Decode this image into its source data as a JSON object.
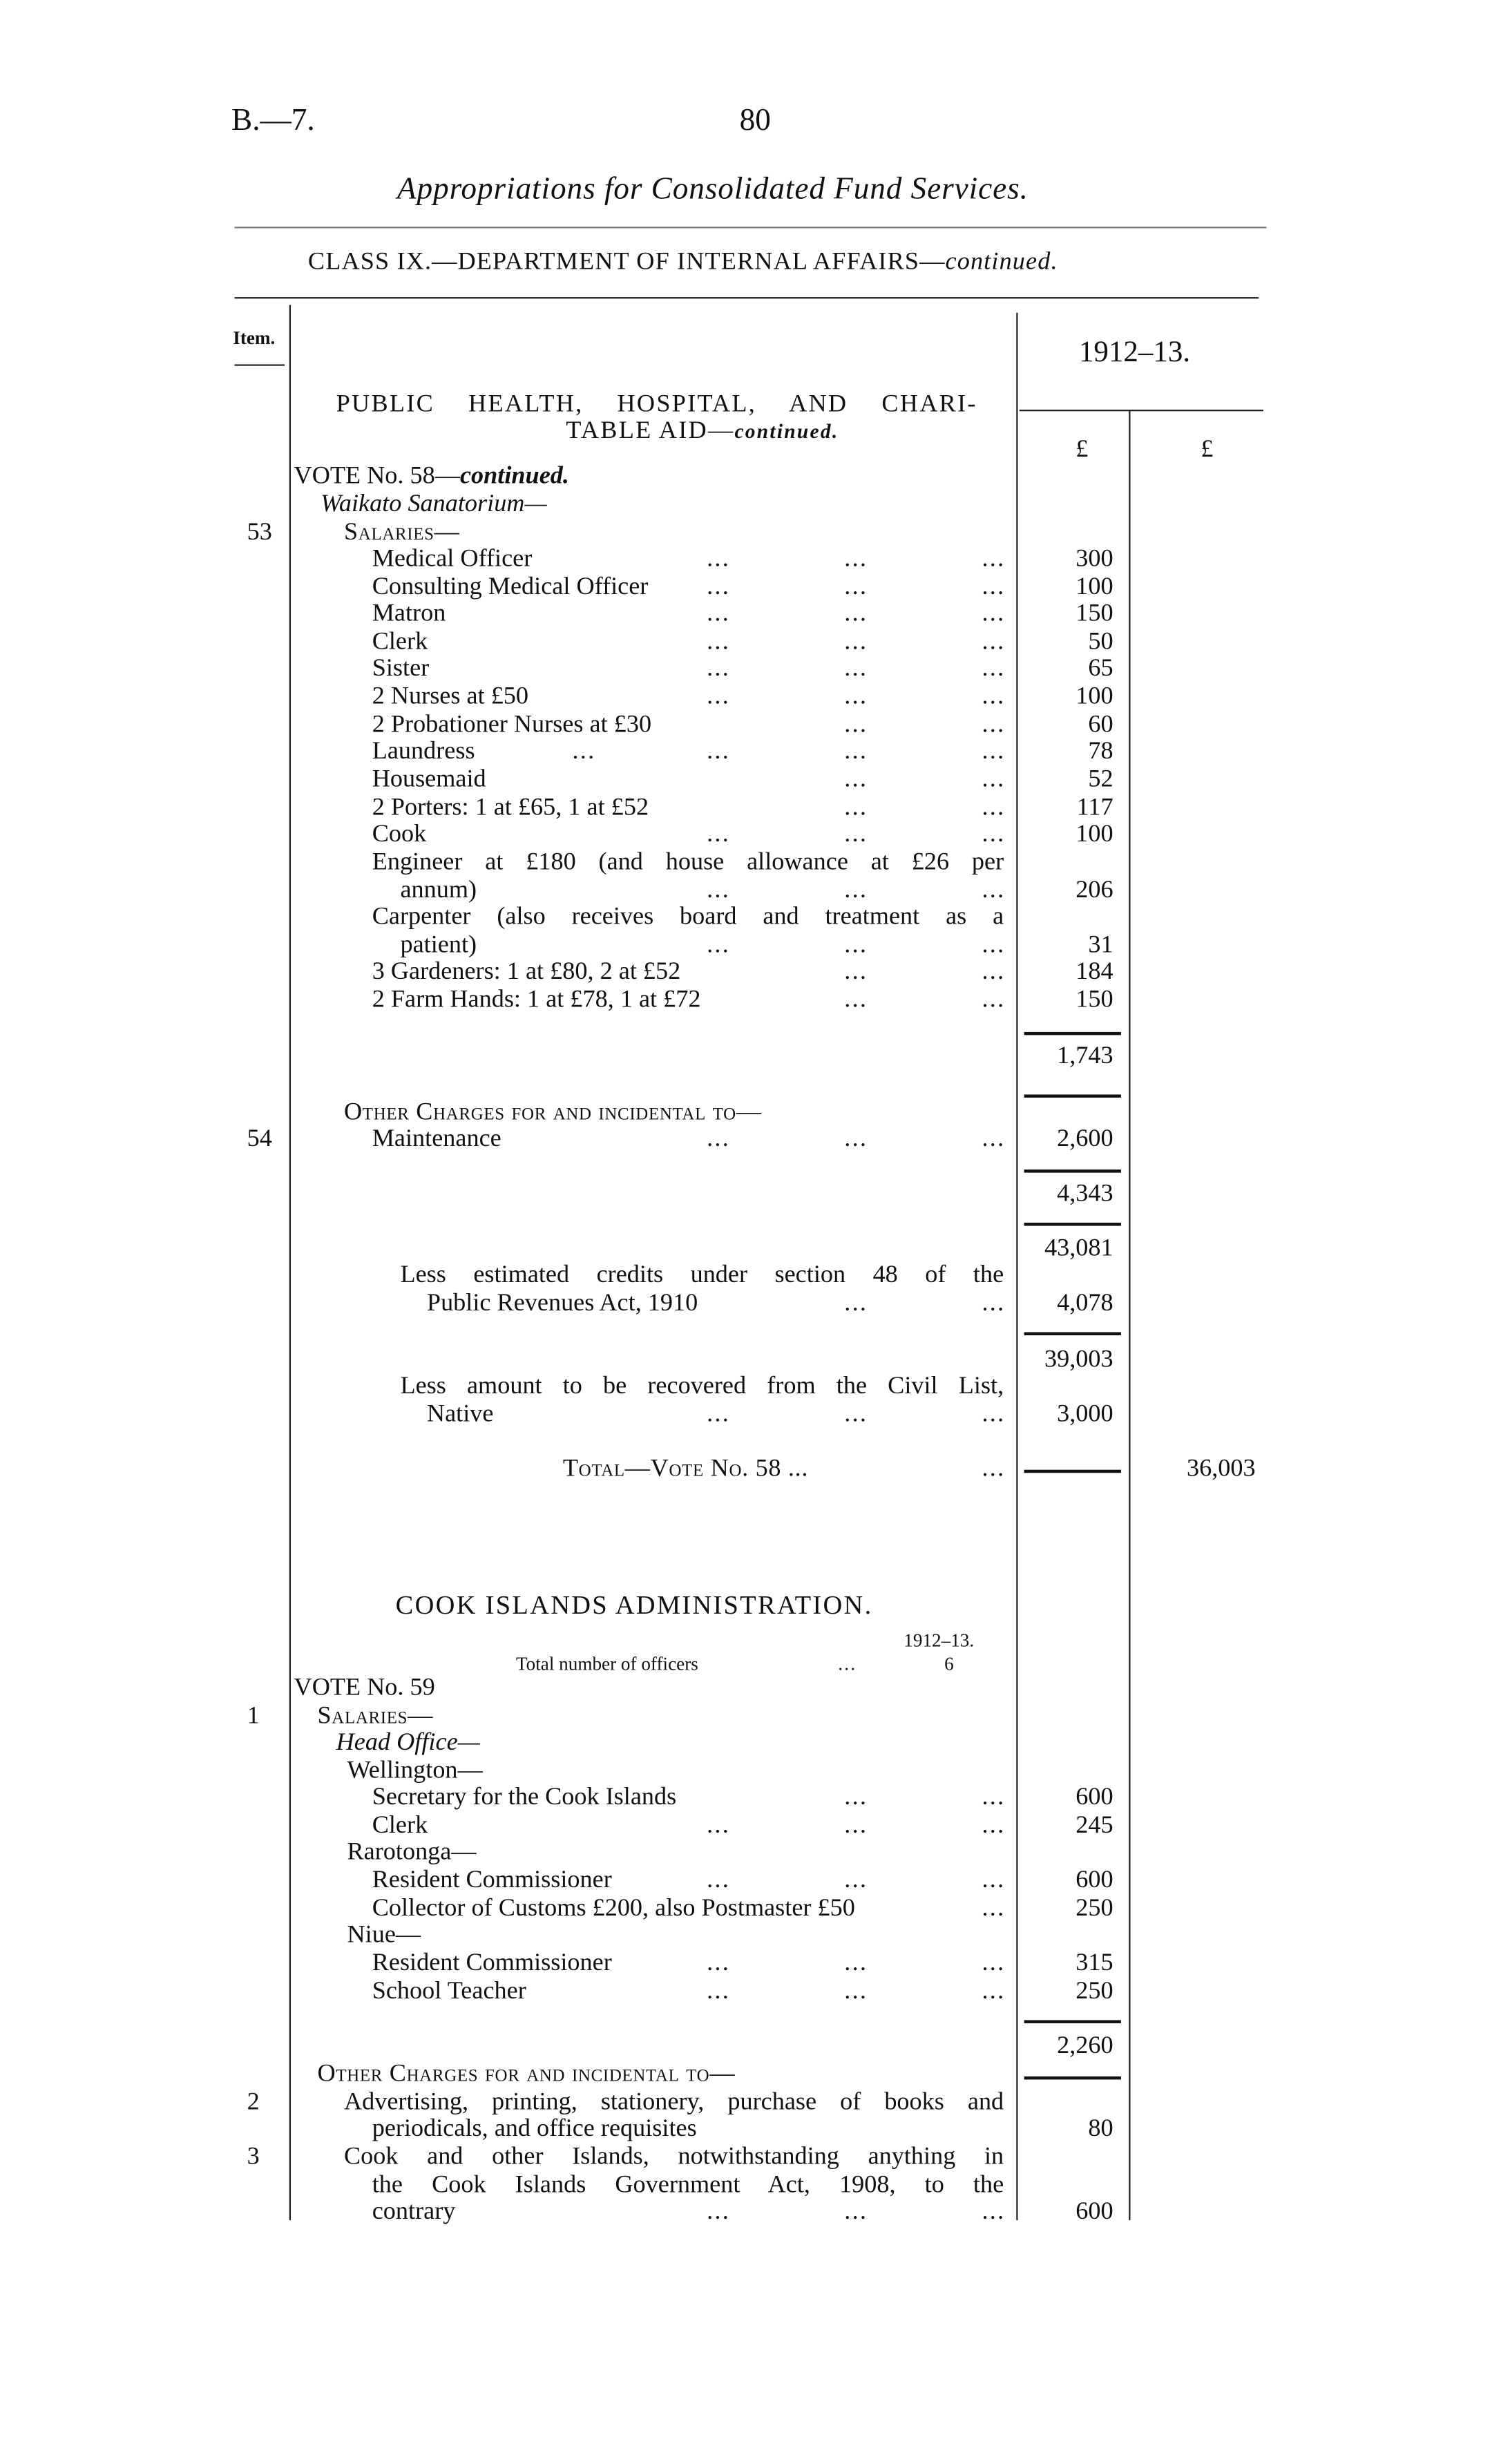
{
  "header": {
    "ref": "B.—7.",
    "page_number": "80",
    "title": "Appropriations for Consolidated Fund Services.",
    "class_line": "CLASS IX.—DEPARTMENT OF INTERNAL AFFAIRS—",
    "class_line_em": "continued.",
    "item_label": "Item.",
    "year_label": "1912–13.",
    "currency_col1": "£",
    "currency_col2": "£"
  },
  "rows": [
    {
      "text": "PUBLIC HEALTH, HOSPITAL, AND CHARI-"
    },
    {
      "text": "TABLE AID—",
      "em": "continued."
    },
    {
      "text": "VOTE No. 58—",
      "em": "continued."
    },
    {
      "text": "",
      "em": "Waikato Sanatorium—"
    },
    {
      "text": "Salaries—",
      "item": "53"
    },
    {
      "text": "Medical Officer",
      "amount": "300"
    },
    {
      "text": "Consulting Medical Officer",
      "amount": "100"
    },
    {
      "text": "Matron",
      "amount": "150"
    },
    {
      "text": "Clerk",
      "amount": "50"
    },
    {
      "text": "Sister",
      "amount": "65"
    },
    {
      "text": "2 Nurses at £50",
      "amount": "100"
    },
    {
      "text": "2 Probationer Nurses at £30",
      "amount": "60"
    },
    {
      "text": "Laundress",
      "amount": "78"
    },
    {
      "text": "Housemaid",
      "amount": "52"
    },
    {
      "text": "2 Porters: 1 at £65, 1 at £52",
      "amount": "117"
    },
    {
      "text": "Cook",
      "amount": "100"
    },
    {
      "text": "Engineer at £180 (and house allowance at £26 per"
    },
    {
      "text": "annum)",
      "amount": "206"
    },
    {
      "text": "Carpenter (also receives board and treatment as a"
    },
    {
      "text": "patient)",
      "amount": "31"
    },
    {
      "text": "3 Gardeners: 1 at £80, 2 at £52",
      "amount": "184"
    },
    {
      "text": "2 Farm Hands: 1 at £78, 1 at £72",
      "amount": "150"
    },
    {
      "text": "",
      "amount": "1,743"
    },
    {
      "text": "Other Charges for and incidental to—"
    },
    {
      "text": "Maintenance",
      "item": "54",
      "amount": "2,600"
    },
    {
      "text": "",
      "amount": "4,343"
    },
    {
      "text": "",
      "amount": "43,081"
    },
    {
      "text": "Less estimated credits under section 48 of the"
    },
    {
      "text": "Public Revenues Act, 1910",
      "amount": "4,078"
    },
    {
      "text": "",
      "amount": "39,003"
    },
    {
      "text": "Less amount to be recovered from the Civil List,"
    },
    {
      "text": "Native",
      "amount": "3,000"
    },
    {
      "text": "Total—Vote No. 58 ...",
      "amount2": "36,003"
    },
    {
      "text": "COOK ISLANDS ADMINISTRATION."
    },
    {
      "text": "1912–13."
    },
    {
      "text": "Total number of officers",
      "value": "6"
    },
    {
      "text": "VOTE No. 59"
    },
    {
      "text": "Salaries—",
      "item": "1"
    },
    {
      "text": "",
      "em": "Head Office—"
    },
    {
      "text": "Wellington—"
    },
    {
      "text": "Secretary for the Cook Islands",
      "amount": "600"
    },
    {
      "text": "Clerk",
      "amount": "245"
    },
    {
      "text": "Rarotonga—"
    },
    {
      "text": "Resident Commissioner",
      "amount": "600"
    },
    {
      "text": "Collector of Customs £200, also Postmaster £50",
      "amount": "250"
    },
    {
      "text": "Niue—"
    },
    {
      "text": "Resident Commissioner",
      "amount": "315"
    },
    {
      "text": "School Teacher",
      "amount": "250"
    },
    {
      "text": "",
      "amount": "2,260"
    },
    {
      "text": "Other Charges for and incidental to—"
    },
    {
      "text": "Advertising, printing, stationery, purchase of books and",
      "item": "2"
    },
    {
      "text": "periodicals, and office requisites",
      "amount": "80"
    },
    {
      "text": "Cook and other Islands, notwithstanding anything in",
      "item": "3"
    },
    {
      "text": "the Cook Islands Government Act, 1908, to the"
    },
    {
      "text": "contrary",
      "amount": "600"
    }
  ]
}
